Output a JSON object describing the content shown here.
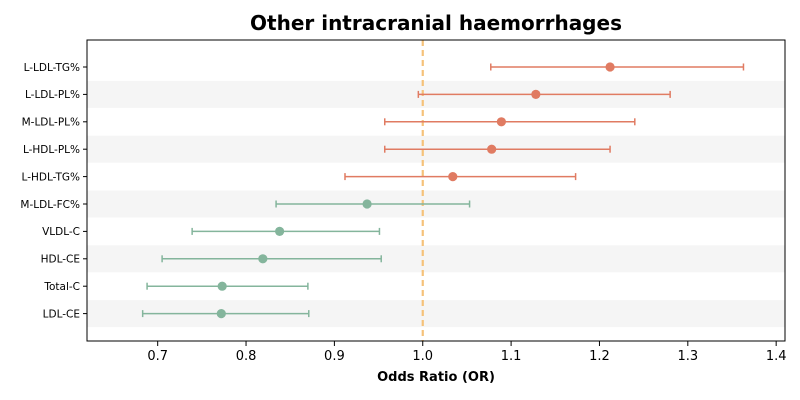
{
  "chart_data": {
    "type": "forest",
    "title": "Other intracranial haemorrhages",
    "xlabel": "Odds Ratio (OR)",
    "ylabel": "",
    "xlim": [
      0.62,
      1.41
    ],
    "xticks": [
      0.7,
      0.8,
      0.9,
      1.0,
      1.1,
      1.2,
      1.3,
      1.4
    ],
    "xtick_labels": [
      "0.7",
      "0.8",
      "0.9",
      "1.0",
      "1.1",
      "1.2",
      "1.3",
      "1.4"
    ],
    "reference_line": 1.0,
    "grid": false,
    "legend": "none",
    "rows": [
      {
        "label": "L-LDL-TG%",
        "or": 1.212,
        "lower": 1.077,
        "upper": 1.363,
        "group": "risk"
      },
      {
        "label": "L-LDL-PL%",
        "or": 1.128,
        "lower": 0.995,
        "upper": 1.28,
        "group": "risk"
      },
      {
        "label": "M-LDL-PL%",
        "or": 1.089,
        "lower": 0.957,
        "upper": 1.24,
        "group": "risk"
      },
      {
        "label": "L-HDL-PL%",
        "or": 1.078,
        "lower": 0.957,
        "upper": 1.212,
        "group": "risk"
      },
      {
        "label": "L-HDL-TG%",
        "or": 1.034,
        "lower": 0.912,
        "upper": 1.173,
        "group": "risk"
      },
      {
        "label": "M-LDL-FC%",
        "or": 0.937,
        "lower": 0.834,
        "upper": 1.053,
        "group": "protective"
      },
      {
        "label": "VLDL-C",
        "or": 0.838,
        "lower": 0.739,
        "upper": 0.951,
        "group": "protective"
      },
      {
        "label": "HDL-CE",
        "or": 0.819,
        "lower": 0.705,
        "upper": 0.953,
        "group": "protective"
      },
      {
        "label": "Total-C",
        "or": 0.773,
        "lower": 0.688,
        "upper": 0.87,
        "group": "protective"
      },
      {
        "label": "LDL-CE",
        "or": 0.772,
        "lower": 0.683,
        "upper": 0.871,
        "group": "protective"
      }
    ]
  },
  "colors": {
    "risk": "#e07b62",
    "protective": "#84b59c",
    "reference_line": "#f5c27a",
    "band": "#f5f5f5"
  }
}
